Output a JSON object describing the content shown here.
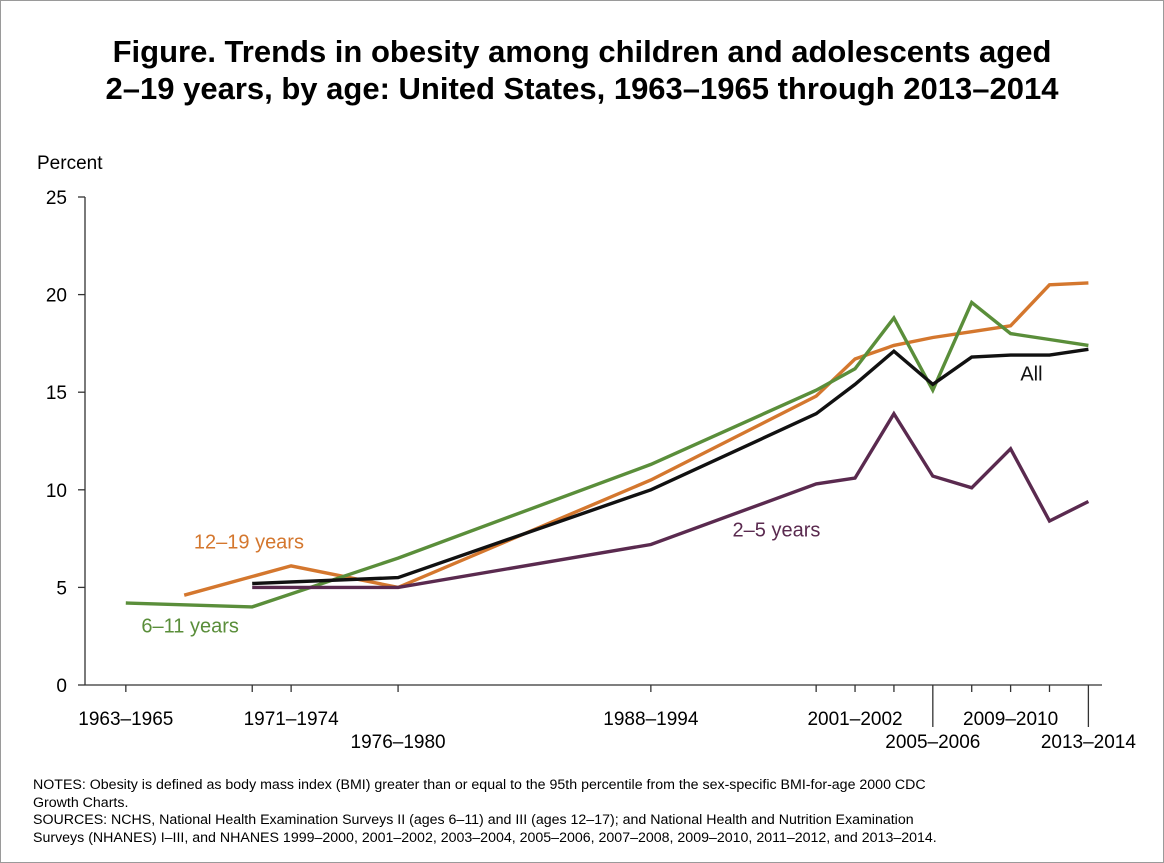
{
  "title": {
    "line1": "Figure. Trends in obesity among children and adolescents aged",
    "line2": "2–19 years, by age: United States, 1963–1965 through 2013–2014"
  },
  "notes": {
    "line1": "NOTES: Obesity is defined as body mass index (BMI) greater than or equal to the 95th percentile from the sex-specific BMI-for-age 2000 CDC",
    "line2": "Growth Charts.",
    "line3": "SOURCES: NCHS, National Health Examination Surveys II (ages 6–11) and III (ages 12–17); and National Health and Nutrition Examination",
    "line4": "Surveys (NHANES) I–III, and  NHANES 1999–2000, 2001–2002, 2003–2004, 2005–2006, 2007–2008, 2009–2010, 2011–2012, and 2013–2014."
  },
  "chart_data": {
    "type": "line",
    "title": "Figure. Trends in obesity among children and adolescents aged 2–19 years, by age: United States, 1963–1965 through 2013–2014",
    "ylabel": "Percent",
    "xlabel": "",
    "ylim": [
      0,
      25
    ],
    "yticks": [
      0,
      5,
      10,
      15,
      20,
      25
    ],
    "x_ticks": [
      {
        "pos": 1964,
        "label": "1963–1965",
        "row": 1,
        "leader": false
      },
      {
        "pos": 1970.5,
        "label": "",
        "row": 0,
        "leader": false
      },
      {
        "pos": 1972.5,
        "label": "1971–1974",
        "row": 1,
        "leader": false
      },
      {
        "pos": 1978,
        "label": "1976–1980",
        "row": 2,
        "leader": false
      },
      {
        "pos": 1991,
        "label": "1988–1994",
        "row": 1,
        "leader": false
      },
      {
        "pos": 1999.5,
        "label": "",
        "row": 0,
        "leader": false
      },
      {
        "pos": 2001.5,
        "label": "2001–2002",
        "row": 1,
        "leader": false
      },
      {
        "pos": 2003.5,
        "label": "",
        "row": 0,
        "leader": false
      },
      {
        "pos": 2005.5,
        "label": "2005–2006",
        "row": 2,
        "leader": true
      },
      {
        "pos": 2007.5,
        "label": "",
        "row": 0,
        "leader": false
      },
      {
        "pos": 2009.5,
        "label": "2009–2010",
        "row": 1,
        "leader": false
      },
      {
        "pos": 2011.5,
        "label": "",
        "row": 0,
        "leader": false
      },
      {
        "pos": 2013.5,
        "label": "2013–2014",
        "row": 2,
        "leader": true
      }
    ],
    "x_min": 1961.9,
    "x_max": 2014.2,
    "grid": false,
    "legend": "none",
    "series": [
      {
        "name": "12–19 years",
        "color": "#d4772e",
        "points": [
          [
            1967,
            4.6
          ],
          [
            1972.5,
            6.1
          ],
          [
            1978,
            5.0
          ],
          [
            1991,
            10.5
          ],
          [
            1999.5,
            14.8
          ],
          [
            2001.5,
            16.7
          ],
          [
            2003.5,
            17.4
          ],
          [
            2005.5,
            17.8
          ],
          [
            2007.5,
            18.1
          ],
          [
            2009.5,
            18.4
          ],
          [
            2011.5,
            20.5
          ],
          [
            2013.5,
            20.6
          ]
        ]
      },
      {
        "name": "6–11 years",
        "color": "#5a8e3a",
        "points": [
          [
            1964,
            4.2
          ],
          [
            1970.5,
            4.0
          ],
          [
            1978,
            6.5
          ],
          [
            1991,
            11.3
          ],
          [
            1999.5,
            15.1
          ],
          [
            2001.5,
            16.2
          ],
          [
            2003.5,
            18.8
          ],
          [
            2005.5,
            15.1
          ],
          [
            2007.5,
            19.6
          ],
          [
            2009.5,
            18.0
          ],
          [
            2011.5,
            17.7
          ],
          [
            2013.5,
            17.4
          ]
        ]
      },
      {
        "name": "All",
        "color": "#111111",
        "points": [
          [
            1970.5,
            5.2
          ],
          [
            1978,
            5.5
          ],
          [
            1991,
            10.0
          ],
          [
            1999.5,
            13.9
          ],
          [
            2001.5,
            15.4
          ],
          [
            2003.5,
            17.1
          ],
          [
            2005.5,
            15.4
          ],
          [
            2007.5,
            16.8
          ],
          [
            2009.5,
            16.9
          ],
          [
            2011.5,
            16.9
          ],
          [
            2013.5,
            17.2
          ]
        ]
      },
      {
        "name": "2–5 years",
        "color": "#5a2a4f",
        "points": [
          [
            1970.5,
            5.0
          ],
          [
            1978,
            5.0
          ],
          [
            1991,
            7.2
          ],
          [
            1999.5,
            10.3
          ],
          [
            2001.5,
            10.6
          ],
          [
            2003.5,
            13.9
          ],
          [
            2005.5,
            10.7
          ],
          [
            2007.5,
            10.1
          ],
          [
            2009.5,
            12.1
          ],
          [
            2011.5,
            8.4
          ],
          [
            2013.5,
            9.4
          ]
        ]
      }
    ],
    "annotations": [
      {
        "text": "12–19 years",
        "color": "#d4772e",
        "x": 1967.5,
        "y": 7.0
      },
      {
        "text": "6–11 years",
        "color": "#5a8e3a",
        "x": 1964.8,
        "y": 2.7
      },
      {
        "text": "All",
        "color": "#111111",
        "x": 2010.0,
        "y": 15.6
      },
      {
        "text": "2–5 years",
        "color": "#5a2a4f",
        "x": 1995.2,
        "y": 7.6
      }
    ]
  }
}
